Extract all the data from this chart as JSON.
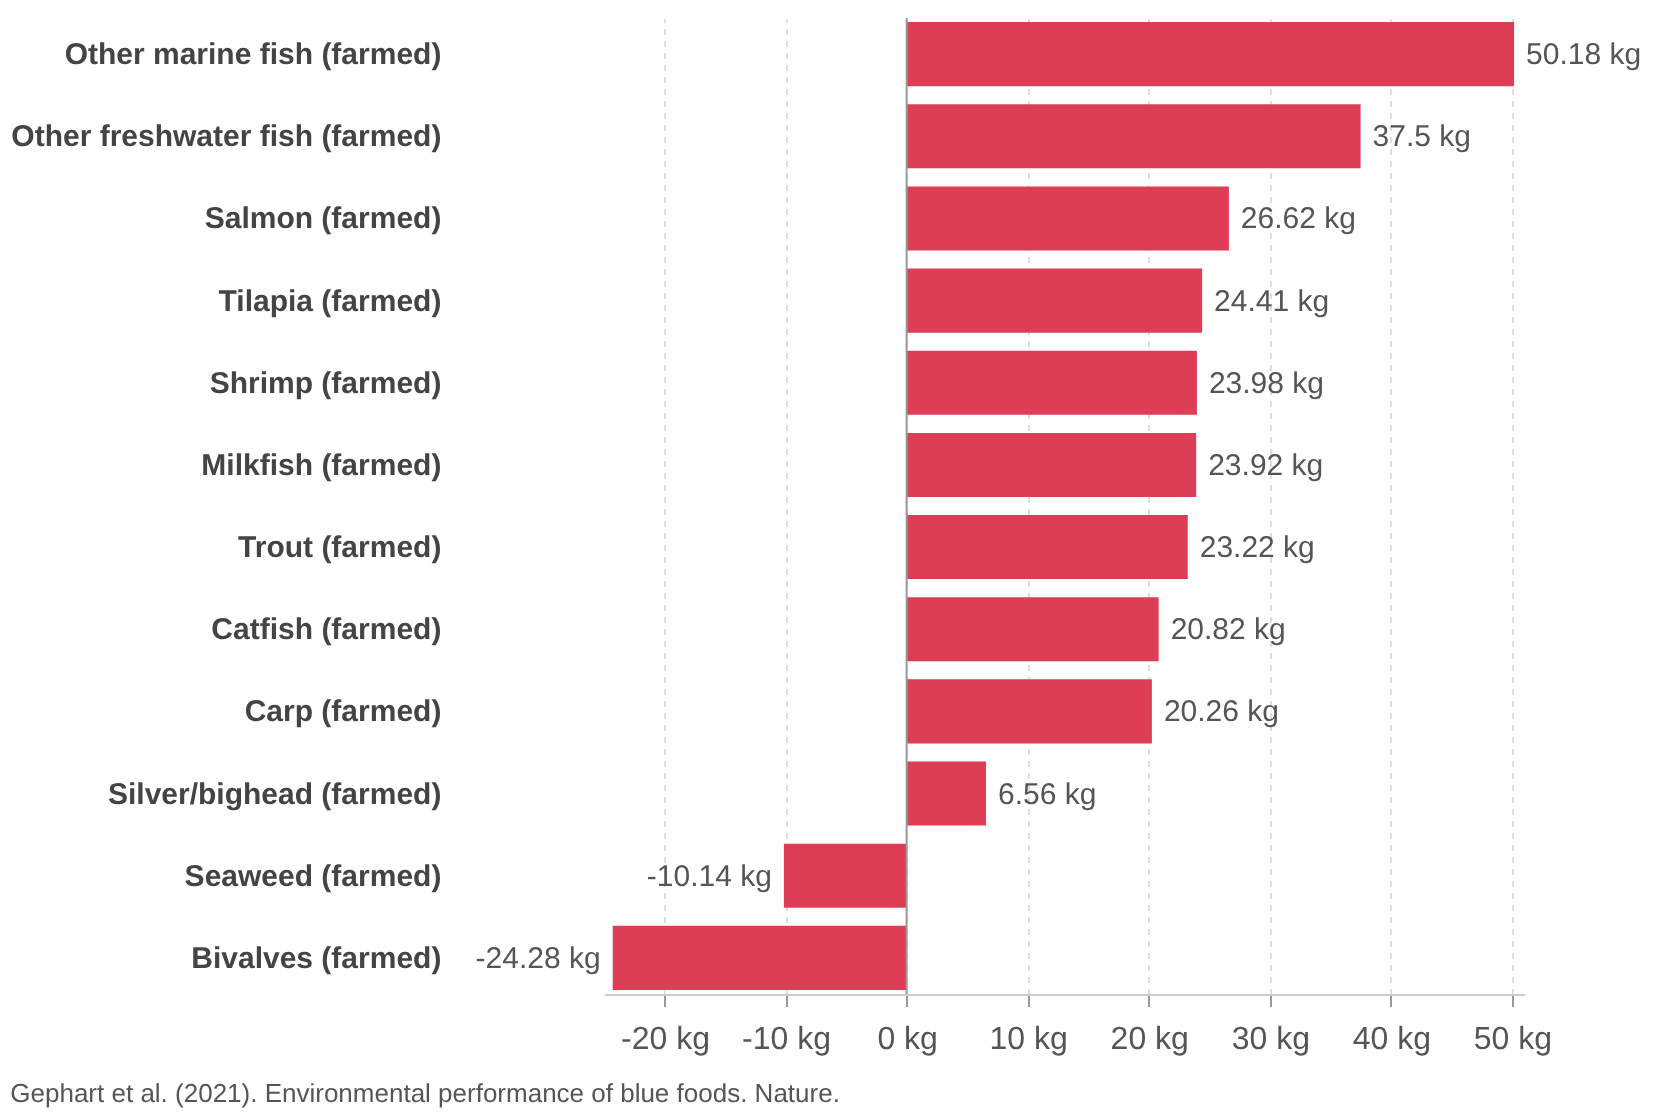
{
  "chart_data": {
    "type": "bar",
    "orientation": "horizontal",
    "categories": [
      "Other marine fish (farmed)",
      "Other freshwater fish (farmed)",
      "Salmon (farmed)",
      "Tilapia (farmed)",
      "Shrimp (farmed)",
      "Milkfish (farmed)",
      "Trout (farmed)",
      "Catfish (farmed)",
      "Carp (farmed)",
      "Silver/bighead (farmed)",
      "Seaweed (farmed)",
      "Bivalves (farmed)"
    ],
    "values": [
      50.18,
      37.5,
      26.62,
      24.41,
      23.98,
      23.92,
      23.22,
      20.82,
      20.26,
      6.56,
      -10.14,
      -24.28
    ],
    "value_labels": [
      "50.18 kg",
      "37.5 kg",
      "26.62 kg",
      "24.41 kg",
      "23.98 kg",
      "23.92 kg",
      "23.22 kg",
      "20.82 kg",
      "20.26 kg",
      "6.56 kg",
      "-10.14 kg",
      "-24.28 kg"
    ],
    "color": "#dc3f55",
    "xlim": [
      -25,
      51
    ],
    "xticks": [
      {
        "value": -20,
        "label": "-20 kg"
      },
      {
        "value": -10,
        "label": "-10 kg"
      },
      {
        "value": 0,
        "label": "0 kg"
      },
      {
        "value": 10,
        "label": "10 kg"
      },
      {
        "value": 20,
        "label": "20 kg"
      },
      {
        "value": 30,
        "label": "30 kg"
      },
      {
        "value": 40,
        "label": "40 kg"
      },
      {
        "value": 50,
        "label": "50 kg"
      }
    ],
    "grid": "x",
    "annotations": [
      "Gephart et al. (2021). Environmental performance of blue foods. Nature."
    ]
  }
}
